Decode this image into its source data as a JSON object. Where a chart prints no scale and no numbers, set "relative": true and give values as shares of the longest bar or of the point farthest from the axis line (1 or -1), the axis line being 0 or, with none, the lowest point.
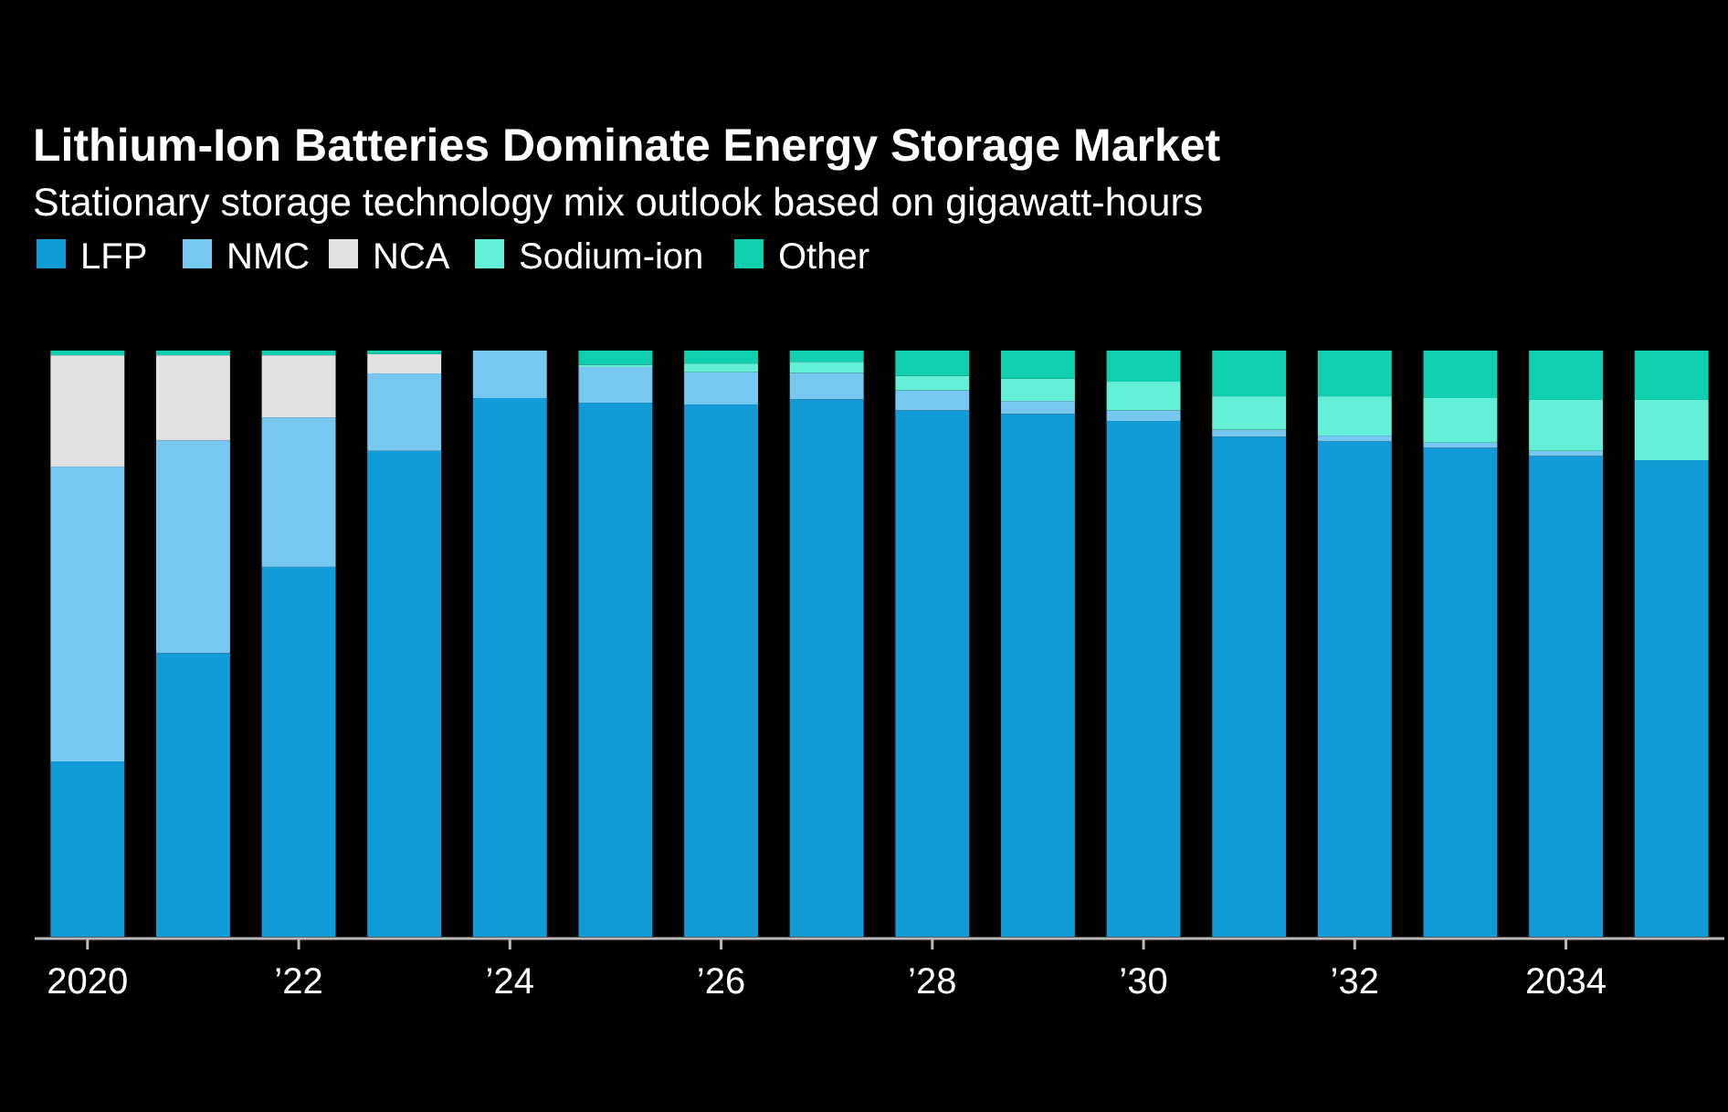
{
  "chart_data": {
    "type": "bar",
    "title": "Lithium-Ion Batteries Dominate Energy Storage Market",
    "subtitle": "Stationary storage technology mix outlook based on gigawatt-hours",
    "categories": [
      "2020",
      null,
      "’22",
      null,
      "’24",
      null,
      "’26",
      null,
      "’28",
      null,
      "’30",
      null,
      "’32",
      null,
      "2034",
      null
    ],
    "stacked": true,
    "relative": true,
    "legend": "top left",
    "grid": false,
    "series": [
      {
        "name": "LFP",
        "color": "#119cd8",
        "values": [
          0.299,
          0.484,
          0.631,
          0.829,
          0.919,
          0.911,
          0.908,
          0.917,
          0.898,
          0.892,
          0.88,
          0.853,
          0.845,
          0.834,
          0.82,
          0.813
        ]
      },
      {
        "name": "NMC",
        "color": "#76c8f0",
        "values": [
          0.503,
          0.363,
          0.255,
          0.132,
          0.081,
          0.061,
          0.055,
          0.045,
          0.034,
          0.022,
          0.018,
          0.012,
          0.01,
          0.009,
          0.009,
          0
        ]
      },
      {
        "name": "NCA",
        "color": "#e2e2e2",
        "values": [
          0.19,
          0.145,
          0.106,
          0.033,
          0,
          0,
          0,
          0,
          0,
          0,
          0,
          0,
          0,
          0,
          0,
          0
        ]
      },
      {
        "name": "Sodium-ion",
        "color": "#63f0d6",
        "values": [
          0,
          0,
          0,
          0,
          0,
          0.004,
          0.015,
          0.019,
          0.025,
          0.038,
          0.049,
          0.057,
          0.067,
          0.076,
          0.087,
          0.103
        ]
      },
      {
        "name": "Other",
        "color": "#0fcfae",
        "values": [
          0.008,
          0.008,
          0.008,
          0.006,
          0,
          0.024,
          0.022,
          0.019,
          0.043,
          0.048,
          0.053,
          0.078,
          0.078,
          0.081,
          0.084,
          0.084
        ]
      }
    ]
  }
}
